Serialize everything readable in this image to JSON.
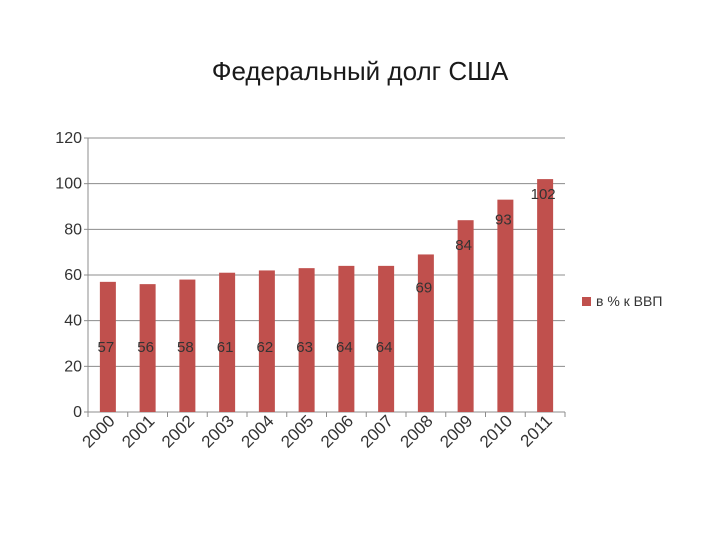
{
  "chart_data": {
    "type": "bar",
    "title": "Федеральный долг США",
    "xlabel": "",
    "ylabel": "",
    "categories": [
      "2000",
      "2001",
      "2002",
      "2003",
      "2004",
      "2005",
      "2006",
      "2007",
      "2008",
      "2009",
      "2010",
      "2011"
    ],
    "series": [
      {
        "name": "в % к ВВП",
        "values": [
          57,
          56,
          58,
          61,
          62,
          63,
          64,
          64,
          69,
          84,
          93,
          102
        ],
        "color": "#c0504d"
      }
    ],
    "ylim": [
      0,
      120
    ],
    "yticks": [
      "0",
      "20",
      "40",
      "60",
      "80",
      "100",
      "120"
    ],
    "grid": true,
    "legend": "right"
  }
}
